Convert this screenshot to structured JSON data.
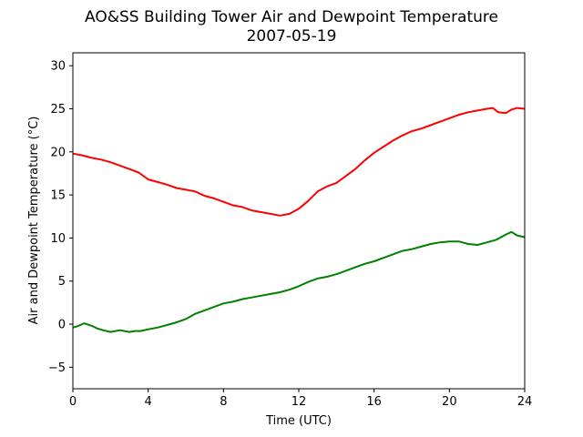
{
  "chart_data": {
    "type": "line",
    "title": "AO&SS Building Tower Air and Dewpoint Temperature",
    "subtitle": "2007-05-19",
    "xlabel": "Time (UTC)",
    "ylabel": "Air and Dewpoint Temperature (°C)",
    "xlim": [
      0,
      24
    ],
    "ylim": [
      -7.5,
      31.5
    ],
    "xticks": [
      0,
      4,
      8,
      12,
      16,
      20,
      24
    ],
    "yticks": [
      -5,
      0,
      5,
      10,
      15,
      20,
      25,
      30
    ],
    "grid": false,
    "series": [
      {
        "color": "#ff0000",
        "x": [
          0,
          0.5,
          1,
          1.5,
          2,
          2.5,
          3,
          3.5,
          4,
          4.5,
          5,
          5.5,
          6,
          6.5,
          7,
          7.5,
          8,
          8.5,
          9,
          9.5,
          10,
          10.5,
          11,
          11.5,
          12,
          12.5,
          13,
          13.5,
          14,
          14.5,
          15,
          15.5,
          16,
          16.5,
          17,
          17.5,
          18,
          18.5,
          19,
          19.5,
          20,
          20.5,
          21,
          21.5,
          22,
          22.3,
          22.6,
          23,
          23.3,
          23.6,
          24
        ],
        "y": [
          19.8,
          19.6,
          19.3,
          19.1,
          18.8,
          18.4,
          18.0,
          17.6,
          16.8,
          16.5,
          16.2,
          15.8,
          15.6,
          15.4,
          14.9,
          14.6,
          14.2,
          13.8,
          13.6,
          13.2,
          13.0,
          12.8,
          12.6,
          12.8,
          13.4,
          14.3,
          15.4,
          16.0,
          16.4,
          17.2,
          18.0,
          19.0,
          19.9,
          20.6,
          21.3,
          21.9,
          22.4,
          22.7,
          23.1,
          23.5,
          23.9,
          24.3,
          24.6,
          24.8,
          25.0,
          25.1,
          24.6,
          24.5,
          24.9,
          25.1,
          25.0
        ]
      },
      {
        "color": "#008000",
        "x": [
          0,
          0.3,
          0.6,
          1,
          1.3,
          1.6,
          2,
          2.5,
          3,
          3.3,
          3.6,
          4,
          4.5,
          5,
          5.5,
          6,
          6.5,
          7,
          7.5,
          8,
          8.5,
          9,
          9.5,
          10,
          10.5,
          11,
          11.5,
          12,
          12.5,
          13,
          13.5,
          14,
          14.5,
          15,
          15.5,
          16,
          16.5,
          17,
          17.5,
          18,
          18.5,
          19,
          19.5,
          20,
          20.5,
          21,
          21.5,
          22,
          22.5,
          23,
          23.3,
          23.6,
          24
        ],
        "y": [
          -0.4,
          -0.2,
          0.1,
          -0.2,
          -0.5,
          -0.7,
          -0.9,
          -0.7,
          -0.9,
          -0.8,
          -0.8,
          -0.6,
          -0.4,
          -0.1,
          0.2,
          0.6,
          1.2,
          1.6,
          2.0,
          2.4,
          2.6,
          2.9,
          3.1,
          3.3,
          3.5,
          3.7,
          4.0,
          4.4,
          4.9,
          5.3,
          5.5,
          5.8,
          6.2,
          6.6,
          7.0,
          7.3,
          7.7,
          8.1,
          8.5,
          8.7,
          9.0,
          9.3,
          9.5,
          9.6,
          9.6,
          9.3,
          9.2,
          9.5,
          9.8,
          10.4,
          10.7,
          10.3,
          10.1
        ]
      }
    ]
  }
}
